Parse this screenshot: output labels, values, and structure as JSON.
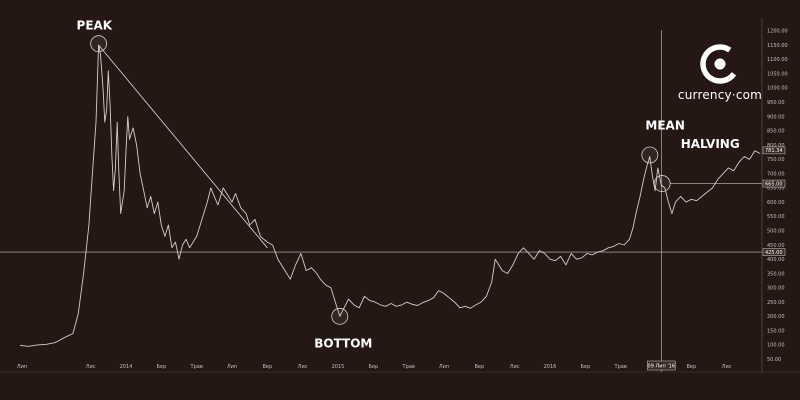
{
  "chart_data": {
    "type": "line",
    "title": "",
    "xlabel": "",
    "ylabel": "",
    "ylim": [
      40,
      1210
    ],
    "y_ticks": [
      "50.00",
      "100.00",
      "150.00",
      "200.00",
      "250.00",
      "300.00",
      "350.00",
      "400.00",
      "450.00",
      "500.00",
      "550.00",
      "600.00",
      "650.00",
      "700.00",
      "750.00",
      "800.00",
      "850.00",
      "900.00",
      "950.00",
      "1000.00",
      "1050.00",
      "1100.00",
      "1150.00",
      "1200.00"
    ],
    "x_ticks": [
      {
        "label": "Лип",
        "t": 0
      },
      {
        "label": "Лис",
        "t": 4
      },
      {
        "label": "2014",
        "t": 6
      },
      {
        "label": "Бер",
        "t": 8
      },
      {
        "label": "Трав",
        "t": 10
      },
      {
        "label": "Лип",
        "t": 12
      },
      {
        "label": "Вер",
        "t": 14
      },
      {
        "label": "Лис",
        "t": 16
      },
      {
        "label": "2015",
        "t": 18
      },
      {
        "label": "Бер",
        "t": 20
      },
      {
        "label": "Трав",
        "t": 22
      },
      {
        "label": "Лип",
        "t": 24
      },
      {
        "label": "Вер",
        "t": 26
      },
      {
        "label": "Лис",
        "t": 28
      },
      {
        "label": "2016",
        "t": 30
      },
      {
        "label": "Бер",
        "t": 32
      },
      {
        "label": "Трав",
        "t": 34
      },
      {
        "label": "Вер",
        "t": 38
      },
      {
        "label": "Лис",
        "t": 40
      }
    ],
    "x_range": [
      0,
      42
    ],
    "crosshair_label": "09 Лип '16",
    "crosshair_t": 36.3,
    "series": [
      {
        "points": [
          [
            0,
            98
          ],
          [
            0.5,
            95
          ],
          [
            1,
            100
          ],
          [
            1.5,
            102
          ],
          [
            2,
            108
          ],
          [
            2.5,
            125
          ],
          [
            3,
            140
          ],
          [
            3.3,
            210
          ],
          [
            3.6,
            350
          ],
          [
            3.9,
            520
          ],
          [
            4.1,
            700
          ],
          [
            4.3,
            880
          ],
          [
            4.45,
            1150
          ],
          [
            4.55,
            1120
          ],
          [
            4.7,
            1000
          ],
          [
            4.8,
            880
          ],
          [
            4.9,
            920
          ],
          [
            5.0,
            1060
          ],
          [
            5.1,
            940
          ],
          [
            5.2,
            760
          ],
          [
            5.3,
            640
          ],
          [
            5.4,
            720
          ],
          [
            5.5,
            880
          ],
          [
            5.6,
            700
          ],
          [
            5.7,
            560
          ],
          [
            5.9,
            640
          ],
          [
            6.0,
            780
          ],
          [
            6.1,
            900
          ],
          [
            6.2,
            820
          ],
          [
            6.4,
            860
          ],
          [
            6.6,
            800
          ],
          [
            6.8,
            700
          ],
          [
            7.0,
            640
          ],
          [
            7.2,
            580
          ],
          [
            7.4,
            620
          ],
          [
            7.6,
            560
          ],
          [
            7.8,
            600
          ],
          [
            8.0,
            520
          ],
          [
            8.2,
            480
          ],
          [
            8.4,
            520
          ],
          [
            8.6,
            440
          ],
          [
            8.8,
            460
          ],
          [
            9.0,
            400
          ],
          [
            9.2,
            450
          ],
          [
            9.4,
            470
          ],
          [
            9.6,
            440
          ],
          [
            9.8,
            460
          ],
          [
            10.0,
            480
          ],
          [
            10.2,
            520
          ],
          [
            10.4,
            560
          ],
          [
            10.6,
            600
          ],
          [
            10.8,
            650
          ],
          [
            11.0,
            620
          ],
          [
            11.2,
            590
          ],
          [
            11.5,
            650
          ],
          [
            11.8,
            620
          ],
          [
            12.0,
            600
          ],
          [
            12.2,
            630
          ],
          [
            12.5,
            580
          ],
          [
            12.8,
            560
          ],
          [
            13.0,
            520
          ],
          [
            13.3,
            540
          ],
          [
            13.6,
            480
          ],
          [
            14.0,
            460
          ],
          [
            14.3,
            450
          ],
          [
            14.6,
            400
          ],
          [
            15.0,
            360
          ],
          [
            15.3,
            330
          ],
          [
            15.6,
            380
          ],
          [
            15.9,
            420
          ],
          [
            16.2,
            360
          ],
          [
            16.5,
            370
          ],
          [
            16.8,
            350
          ],
          [
            17.0,
            330
          ],
          [
            17.3,
            310
          ],
          [
            17.6,
            300
          ],
          [
            17.9,
            240
          ],
          [
            18.1,
            200
          ],
          [
            18.3,
            225
          ],
          [
            18.6,
            260
          ],
          [
            18.9,
            240
          ],
          [
            19.2,
            230
          ],
          [
            19.5,
            270
          ],
          [
            19.8,
            255
          ],
          [
            20.1,
            250
          ],
          [
            20.4,
            240
          ],
          [
            20.7,
            235
          ],
          [
            21.0,
            245
          ],
          [
            21.3,
            235
          ],
          [
            21.6,
            240
          ],
          [
            21.9,
            250
          ],
          [
            22.2,
            242
          ],
          [
            22.5,
            238
          ],
          [
            22.8,
            248
          ],
          [
            23.1,
            255
          ],
          [
            23.4,
            265
          ],
          [
            23.7,
            290
          ],
          [
            24.0,
            280
          ],
          [
            24.3,
            265
          ],
          [
            24.6,
            250
          ],
          [
            24.9,
            230
          ],
          [
            25.2,
            235
          ],
          [
            25.5,
            228
          ],
          [
            25.8,
            240
          ],
          [
            26.1,
            250
          ],
          [
            26.4,
            270
          ],
          [
            26.7,
            320
          ],
          [
            26.9,
            400
          ],
          [
            27.1,
            380
          ],
          [
            27.3,
            360
          ],
          [
            27.6,
            350
          ],
          [
            27.9,
            380
          ],
          [
            28.2,
            420
          ],
          [
            28.5,
            440
          ],
          [
            28.8,
            420
          ],
          [
            29.1,
            400
          ],
          [
            29.4,
            430
          ],
          [
            29.7,
            420
          ],
          [
            30.0,
            400
          ],
          [
            30.3,
            395
          ],
          [
            30.6,
            410
          ],
          [
            30.9,
            380
          ],
          [
            31.2,
            420
          ],
          [
            31.5,
            400
          ],
          [
            31.8,
            405
          ],
          [
            32.1,
            420
          ],
          [
            32.4,
            415
          ],
          [
            32.7,
            425
          ],
          [
            33.0,
            430
          ],
          [
            33.3,
            440
          ],
          [
            33.6,
            445
          ],
          [
            33.9,
            455
          ],
          [
            34.2,
            450
          ],
          [
            34.5,
            470
          ],
          [
            34.7,
            510
          ],
          [
            34.9,
            570
          ],
          [
            35.1,
            620
          ],
          [
            35.3,
            680
          ],
          [
            35.5,
            730
          ],
          [
            35.65,
            760
          ],
          [
            35.8,
            690
          ],
          [
            35.95,
            640
          ],
          [
            36.1,
            720
          ],
          [
            36.3,
            660
          ],
          [
            36.5,
            650
          ],
          [
            36.7,
            600
          ],
          [
            36.9,
            560
          ],
          [
            37.1,
            600
          ],
          [
            37.4,
            620
          ],
          [
            37.7,
            600
          ],
          [
            38.0,
            610
          ],
          [
            38.3,
            605
          ],
          [
            38.6,
            620
          ],
          [
            38.9,
            635
          ],
          [
            39.2,
            650
          ],
          [
            39.5,
            680
          ],
          [
            39.8,
            700
          ],
          [
            40.1,
            720
          ],
          [
            40.4,
            710
          ],
          [
            40.7,
            740
          ],
          [
            41.0,
            760
          ],
          [
            41.3,
            750
          ],
          [
            41.6,
            780
          ],
          [
            41.9,
            770
          ]
        ]
      }
    ],
    "trendline": {
      "from": [
        4.45,
        1150
      ],
      "to": [
        14.0,
        440
      ]
    },
    "support_level": 425,
    "halving_level": 665,
    "last_price_label": "781.34",
    "halving_label": "665.00",
    "support_label": "425.00",
    "annotations": [
      {
        "text": "PEAK",
        "t": 3.2,
        "v": 1205
      },
      {
        "text": "MEAN",
        "t": 35.4,
        "v": 855
      },
      {
        "text": "HALVING",
        "t": 37.4,
        "v": 790
      },
      {
        "text": "BOTTOM",
        "t": 18.3,
        "v": 90
      }
    ],
    "circles": [
      {
        "name": "peak",
        "t": 4.45,
        "v": 1155
      },
      {
        "name": "mean",
        "t": 35.65,
        "v": 765
      },
      {
        "name": "halving",
        "t": 36.35,
        "v": 665
      },
      {
        "name": "bottom",
        "t": 18.1,
        "v": 200
      }
    ]
  },
  "brand": {
    "name": "currency·com",
    "logo_icon": "currency-com-logo-icon"
  },
  "colors": {
    "background": "#251714",
    "line": "#d8cdc6",
    "grid": "#c8bdb6"
  }
}
